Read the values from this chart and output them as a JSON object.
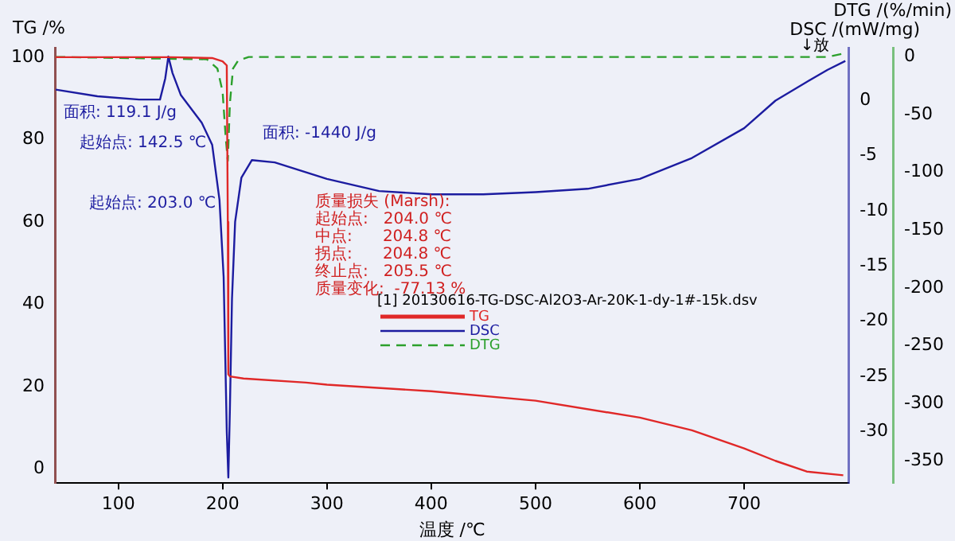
{
  "chart_data": {
    "type": "line",
    "xlabel": "温度 /℃",
    "ylabel": "TG /%",
    "y2label": "DSC /(mW/mg)",
    "y3label": "DTG /(%/min)",
    "legend_title": "[1] 20130616-TG-DSC-Al2O3-Ar-20K-1-dy-1#-15k.dsv",
    "legend": "right",
    "grid": false,
    "xlim": [
      40,
      800
    ],
    "xticks": [
      100,
      200,
      300,
      400,
      500,
      600,
      700
    ],
    "ylim": [
      -3.4,
      102.3
    ],
    "yticks": [
      0,
      20,
      40,
      60,
      80,
      100
    ],
    "y2lim": [
      -34.7,
      4.8
    ],
    "y2ticks": [
      -30,
      -25,
      -20,
      -15,
      -10,
      -5,
      0
    ],
    "y3lim": [
      -369,
      8
    ],
    "y3ticks": [
      -350,
      -300,
      -250,
      -200,
      -150,
      -100,
      -50,
      0
    ],
    "series": [
      {
        "name": "TG",
        "color": "#e02828",
        "line_style": "solid",
        "x": [
          40,
          150,
          190,
          200,
          204,
          205,
          205.5,
          207,
          220,
          280,
          300,
          400,
          500,
          600,
          650,
          700,
          730,
          760,
          795
        ],
        "values": [
          100,
          100,
          99.8,
          99,
          98,
          60,
          23,
          22.5,
          22,
          21,
          20.5,
          18.9,
          16.6,
          12.5,
          9.4,
          5,
          2,
          -0.6,
          -1.5
        ]
      },
      {
        "name": "DSC",
        "color": "#1c1ca0",
        "line_style": "solid",
        "axis": "y2",
        "x": [
          40,
          80,
          120,
          140,
          145,
          148,
          152,
          160,
          180,
          190,
          197,
          201,
          204,
          205.5,
          207,
          209,
          212,
          218,
          228,
          250,
          300,
          350,
          400,
          450,
          500,
          550,
          600,
          650,
          700,
          730,
          760,
          780,
          797
        ],
        "values": [
          1.0,
          0.4,
          0.1,
          0.1,
          2,
          4.0,
          2.5,
          0.5,
          -2,
          -4,
          -9,
          -16,
          -30,
          -34.2,
          -28,
          -18,
          -11,
          -7,
          -5.4,
          -5.6,
          -7.1,
          -8.2,
          -8.5,
          -8.5,
          -8.3,
          -8,
          -7.1,
          -5.2,
          -2.5,
          0,
          1.7,
          2.8,
          3.6
        ]
      },
      {
        "name": "DTG",
        "color": "#2ca02c",
        "line_style": "dashed",
        "axis": "y3",
        "x": [
          40,
          185,
          195,
          200,
          203,
          205,
          207,
          210,
          215,
          225,
          400,
          600,
          780,
          795
        ],
        "values": [
          0,
          -2,
          -10,
          -30,
          -70,
          -90,
          -40,
          -10,
          -3,
          0,
          0,
          0,
          0,
          3
        ]
      }
    ],
    "annotations": [
      "面积: 119.1 J/g",
      "起始点: 142.5 ℃",
      "面积: -1440 J/g",
      "起始点: 203.0 ℃",
      "质量损失 (Marsh):",
      "起始点:   204.0 ℃",
      "中点:      204.8 ℃",
      "拐点:      204.8 ℃",
      "终止点:   205.5 ℃",
      "质量变化:  -77.13 %",
      "↓放"
    ]
  }
}
